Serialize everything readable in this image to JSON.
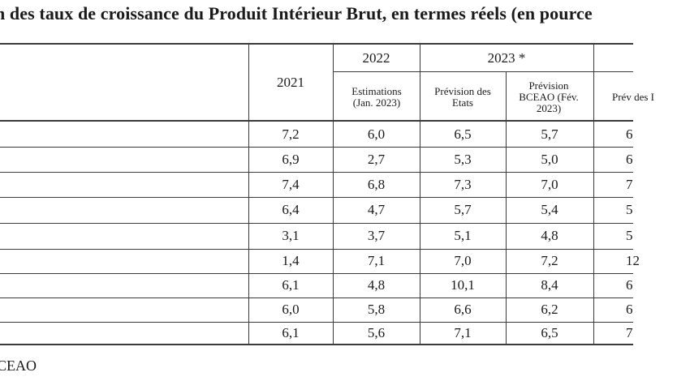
{
  "title": "n des taux de croissance du Produit Intérieur Brut, en termes réels (en pource",
  "source_note": "CEAO",
  "headers": {
    "year_2021": "2021",
    "year_2022": "2022",
    "year_2023": "2023 *",
    "col_2022_estimations": "Estimations (Jan. 2023)",
    "col_2023_etats": "Prévision des Etats",
    "col_2023_bceao": "Prévision BCEAO (Fév. 2023)",
    "col_next_partial": "Prév des I"
  },
  "rows": [
    {
      "c2021": "7,2",
      "c2022": "6,0",
      "etats": "6,5",
      "bceao": "5,7",
      "next": "6"
    },
    {
      "c2021": "6,9",
      "c2022": "2,7",
      "etats": "5,3",
      "bceao": "5,0",
      "next": "6"
    },
    {
      "c2021": "7,4",
      "c2022": "6,8",
      "etats": "7,3",
      "bceao": "7,0",
      "next": "7"
    },
    {
      "c2021": "6,4",
      "c2022": "4,7",
      "etats": "5,7",
      "bceao": "5,4",
      "next": "5"
    },
    {
      "c2021": "3,1",
      "c2022": "3,7",
      "etats": "5,1",
      "bceao": "4,8",
      "next": "5"
    },
    {
      "c2021": "1,4",
      "c2022": "7,1",
      "etats": "7,0",
      "bceao": "7,2",
      "next": "12"
    },
    {
      "c2021": "6,1",
      "c2022": "4,8",
      "etats": "10,1",
      "bceao": "8,4",
      "next": "6"
    },
    {
      "c2021": "6,0",
      "c2022": "5,8",
      "etats": "6,6",
      "bceao": "6,2",
      "next": "6"
    },
    {
      "c2021": "6,1",
      "c2022": "5,6",
      "etats": "7,1",
      "bceao": "6,5",
      "next": "7"
    }
  ]
}
